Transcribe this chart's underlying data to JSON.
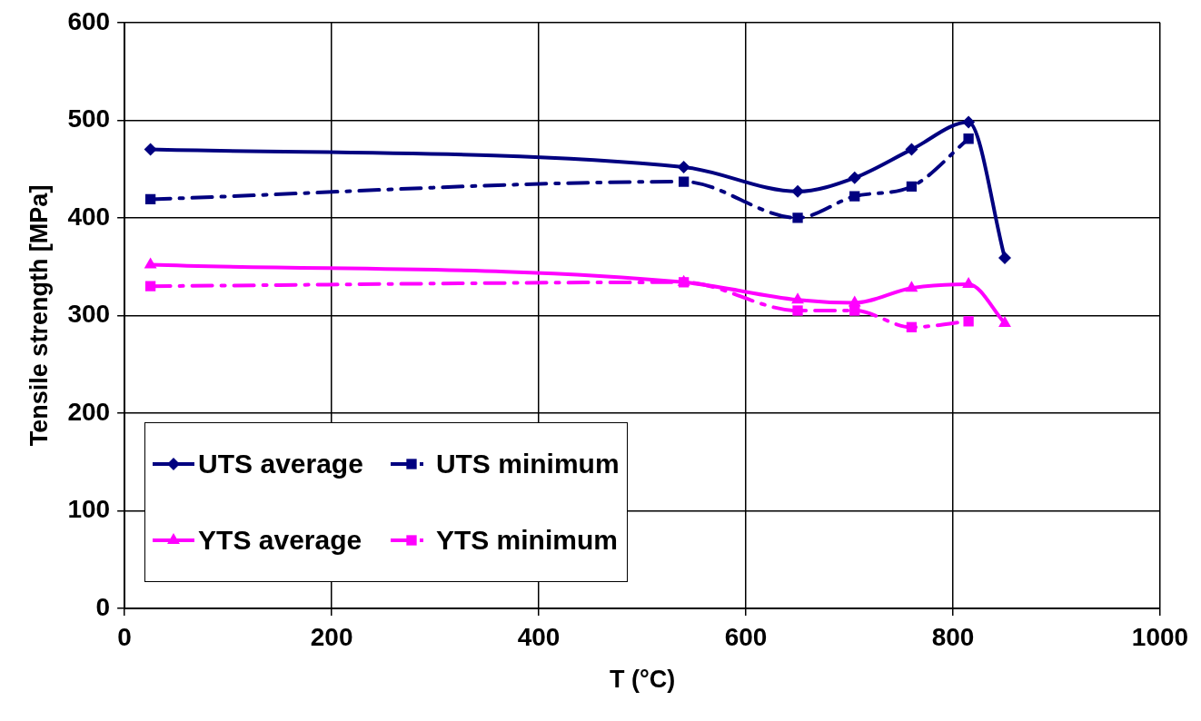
{
  "chart_data": {
    "type": "line",
    "xlabel": "T (°C)",
    "ylabel": "Tensile strength [MPa]",
    "xlim": [
      0,
      1000
    ],
    "xticks": [
      0,
      200,
      400,
      600,
      800,
      1000
    ],
    "ylim": [
      0,
      600
    ],
    "yticks": [
      0,
      100,
      200,
      300,
      400,
      500,
      600
    ],
    "grid": true,
    "legend": "bottom left",
    "series": [
      {
        "name": "UTS average",
        "color": "#000080",
        "marker": "diamond",
        "line_style": "solid",
        "x": [
          25,
          540,
          650,
          705,
          760,
          815,
          850
        ],
        "values": [
          470,
          452,
          427,
          441,
          470,
          498,
          359
        ]
      },
      {
        "name": "UTS minimum",
        "color": "#000080",
        "marker": "square",
        "line_style": "dashed",
        "x": [
          25,
          540,
          650,
          705,
          760,
          815
        ],
        "values": [
          419,
          437,
          400,
          422,
          432,
          481
        ]
      },
      {
        "name": "YTS average",
        "color": "#ff00ff",
        "marker": "triangle",
        "line_style": "solid",
        "x": [
          25,
          540,
          650,
          705,
          760,
          815,
          850
        ],
        "values": [
          352,
          334,
          316,
          313,
          328,
          332,
          292
        ]
      },
      {
        "name": "YTS minimum",
        "color": "#ff00ff",
        "marker": "square",
        "line_style": "dashed",
        "x": [
          25,
          540,
          650,
          705,
          760,
          815
        ],
        "values": [
          330,
          334,
          305,
          305,
          288,
          294
        ]
      }
    ]
  }
}
